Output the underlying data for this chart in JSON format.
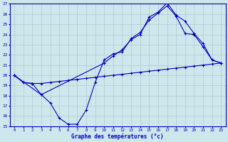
{
  "title": "Graphe des températures (°c)",
  "bg_color": "#cde8ec",
  "line_color": "#0000bb",
  "grid_color": "#aacccc",
  "xlim": [
    -0.5,
    23.5
  ],
  "ylim": [
    15,
    27
  ],
  "yticks": [
    15,
    16,
    17,
    18,
    19,
    20,
    21,
    22,
    23,
    24,
    25,
    26,
    27
  ],
  "xticks": [
    0,
    1,
    2,
    3,
    4,
    5,
    6,
    7,
    8,
    9,
    10,
    11,
    12,
    13,
    14,
    15,
    16,
    17,
    18,
    19,
    20,
    21,
    22,
    23
  ],
  "line1_x": [
    0,
    1,
    2,
    3,
    4,
    5,
    6,
    7,
    8,
    9,
    10,
    11,
    12,
    13,
    14,
    15,
    16,
    17,
    18,
    19,
    20,
    21,
    22,
    23
  ],
  "line1_y": [
    20.0,
    19.3,
    19.2,
    19.2,
    19.3,
    19.4,
    19.5,
    19.6,
    19.7,
    19.8,
    19.9,
    20.0,
    20.1,
    20.2,
    20.3,
    20.4,
    20.5,
    20.6,
    20.7,
    20.8,
    20.9,
    21.0,
    21.1,
    21.2
  ],
  "line2_x": [
    0,
    1,
    2,
    3,
    4,
    5,
    6,
    7,
    8,
    9,
    10,
    11,
    12,
    13,
    14,
    15,
    16,
    17,
    18,
    19,
    20,
    21,
    22,
    23
  ],
  "line2_y": [
    20.0,
    19.3,
    19.2,
    18.1,
    17.3,
    15.8,
    15.2,
    15.2,
    16.6,
    19.3,
    21.5,
    22.1,
    22.3,
    23.6,
    24.2,
    25.4,
    26.1,
    26.8,
    25.8,
    24.1,
    24.0,
    22.8,
    21.5,
    21.2
  ],
  "line3_x": [
    0,
    3,
    10,
    11,
    12,
    13,
    14,
    15,
    16,
    17,
    18,
    19,
    20,
    21,
    22,
    23
  ],
  "line3_y": [
    20.0,
    18.1,
    21.2,
    21.9,
    22.5,
    23.5,
    24.0,
    25.7,
    26.2,
    27.1,
    25.9,
    25.3,
    24.1,
    23.1,
    21.5,
    21.2
  ]
}
